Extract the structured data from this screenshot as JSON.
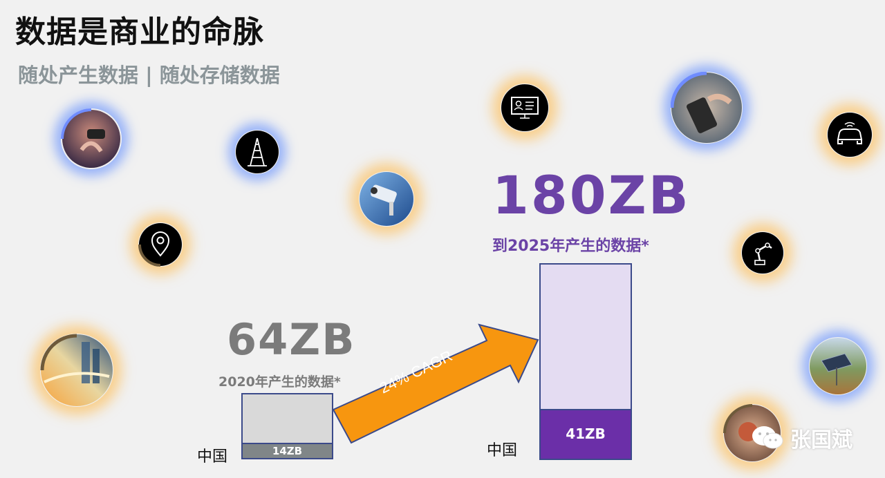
{
  "header": {
    "title": "数据是商业的命脉",
    "subtitle": "随处产生数据 | 随处存储数据"
  },
  "chart_data": {
    "type": "bar",
    "categories": [
      "2020",
      "2025"
    ],
    "series": [
      {
        "values": [
          64,
          180
        ]
      },
      {
        "name": "中国",
        "values": [
          14,
          41
        ]
      }
    ],
    "unit": "ZB",
    "labels": {
      "total_2020": "64ZB",
      "caption_2020": "2020年产生的数据*",
      "china_2020": "14ZB",
      "total_2025": "180ZB",
      "caption_2025": "到2025年产生的数据*",
      "china_2025": "41ZB",
      "china_label_1": "中国",
      "china_label_2": "中国"
    },
    "annotation": "24% CAGR",
    "colors": {
      "gray_text": "#7b7b7b",
      "purple_text": "#6b43a6",
      "bar_2020_fill": "#d9d9d9",
      "bar_2020_china": "#808688",
      "bar_2025_fill": "#e4dcf2",
      "bar_2025_china": "#6b2fa8",
      "arrow": "#f7960f",
      "bar_border": "#3b4a8a"
    }
  },
  "icons": [
    "vr-headset-icon",
    "oil-rig-icon",
    "security-camera-icon",
    "location-pin-icon",
    "city-lights-icon",
    "monitor-profile-icon",
    "smartphone-icon",
    "car-icon",
    "robot-arm-icon",
    "solar-panel-icon",
    "food-icon"
  ],
  "watermark": {
    "name": "张国斌",
    "icon": "wechat-icon"
  }
}
